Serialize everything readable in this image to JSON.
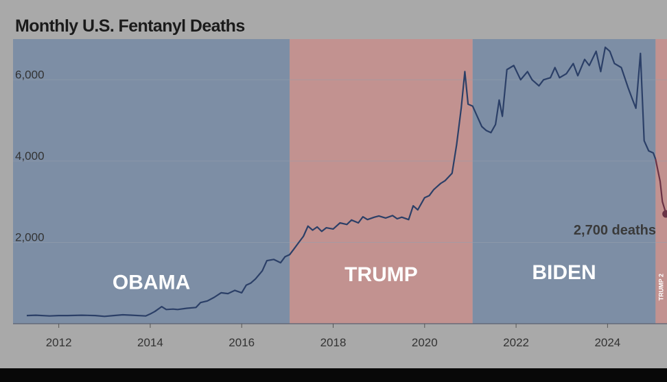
{
  "chart_data": {
    "type": "line",
    "title": "Monthly U.S. Fentanyl Deaths",
    "xlabel": "",
    "ylabel": "",
    "xlim": [
      2011.0,
      2025.3
    ],
    "ylim": [
      0,
      7000
    ],
    "grid": true,
    "x_ticks": [
      2012,
      2014,
      2016,
      2018,
      2020,
      2022,
      2024
    ],
    "y_ticks": [
      2000,
      4000,
      6000
    ],
    "y_tick_labels": [
      "2,000",
      "4,000",
      "6,000"
    ],
    "x_tick_labels": [
      "2012",
      "2014",
      "2016",
      "2018",
      "2020",
      "2022",
      "2024"
    ],
    "eras": [
      {
        "label": "OBAMA",
        "start": 2011.0,
        "end": 2017.05,
        "color": "#7d8ea5"
      },
      {
        "label": "TRUMP",
        "start": 2017.05,
        "end": 2021.05,
        "color": "#c29290"
      },
      {
        "label": "BIDEN",
        "start": 2021.05,
        "end": 2025.05,
        "color": "#7d8ea5"
      },
      {
        "label": "TRUMP 2",
        "start": 2025.05,
        "end": 2025.3,
        "color": "#c29290"
      }
    ],
    "series": [
      {
        "values": [
          [
            2011.3,
            200
          ],
          [
            2011.5,
            210
          ],
          [
            2011.8,
            190
          ],
          [
            2012.0,
            200
          ],
          [
            2012.2,
            200
          ],
          [
            2012.5,
            210
          ],
          [
            2012.8,
            200
          ],
          [
            2013.0,
            180
          ],
          [
            2013.2,
            200
          ],
          [
            2013.4,
            220
          ],
          [
            2013.6,
            210
          ],
          [
            2013.9,
            190
          ],
          [
            2014.0,
            240
          ],
          [
            2014.1,
            300
          ],
          [
            2014.25,
            420
          ],
          [
            2014.35,
            350
          ],
          [
            2014.5,
            360
          ],
          [
            2014.6,
            350
          ],
          [
            2014.8,
            380
          ],
          [
            2015.0,
            400
          ],
          [
            2015.1,
            520
          ],
          [
            2015.25,
            560
          ],
          [
            2015.4,
            650
          ],
          [
            2015.55,
            760
          ],
          [
            2015.7,
            740
          ],
          [
            2015.85,
            820
          ],
          [
            2016.0,
            760
          ],
          [
            2016.1,
            950
          ],
          [
            2016.2,
            1000
          ],
          [
            2016.3,
            1100
          ],
          [
            2016.45,
            1300
          ],
          [
            2016.55,
            1550
          ],
          [
            2016.7,
            1580
          ],
          [
            2016.85,
            1500
          ],
          [
            2016.95,
            1650
          ],
          [
            2017.05,
            1700
          ],
          [
            2017.15,
            1850
          ],
          [
            2017.25,
            2000
          ],
          [
            2017.35,
            2150
          ],
          [
            2017.45,
            2400
          ],
          [
            2017.55,
            2300
          ],
          [
            2017.65,
            2380
          ],
          [
            2017.75,
            2270
          ],
          [
            2017.85,
            2360
          ],
          [
            2018.0,
            2330
          ],
          [
            2018.15,
            2480
          ],
          [
            2018.3,
            2440
          ],
          [
            2018.4,
            2550
          ],
          [
            2018.55,
            2480
          ],
          [
            2018.65,
            2630
          ],
          [
            2018.75,
            2560
          ],
          [
            2018.9,
            2620
          ],
          [
            2019.0,
            2650
          ],
          [
            2019.15,
            2600
          ],
          [
            2019.3,
            2660
          ],
          [
            2019.4,
            2580
          ],
          [
            2019.5,
            2620
          ],
          [
            2019.65,
            2560
          ],
          [
            2019.75,
            2900
          ],
          [
            2019.85,
            2800
          ],
          [
            2020.0,
            3100
          ],
          [
            2020.1,
            3150
          ],
          [
            2020.2,
            3300
          ],
          [
            2020.35,
            3450
          ],
          [
            2020.45,
            3520
          ],
          [
            2020.6,
            3700
          ],
          [
            2020.7,
            4400
          ],
          [
            2020.8,
            5300
          ],
          [
            2020.88,
            6200
          ],
          [
            2020.95,
            5400
          ],
          [
            2021.05,
            5350
          ],
          [
            2021.15,
            5100
          ],
          [
            2021.25,
            4850
          ],
          [
            2021.35,
            4750
          ],
          [
            2021.45,
            4700
          ],
          [
            2021.55,
            4900
          ],
          [
            2021.63,
            5500
          ],
          [
            2021.7,
            5100
          ],
          [
            2021.8,
            6250
          ],
          [
            2021.95,
            6350
          ],
          [
            2022.1,
            6000
          ],
          [
            2022.25,
            6200
          ],
          [
            2022.35,
            6000
          ],
          [
            2022.5,
            5850
          ],
          [
            2022.6,
            6000
          ],
          [
            2022.75,
            6050
          ],
          [
            2022.85,
            6300
          ],
          [
            2022.95,
            6050
          ],
          [
            2023.1,
            6150
          ],
          [
            2023.25,
            6400
          ],
          [
            2023.35,
            6100
          ],
          [
            2023.5,
            6500
          ],
          [
            2023.6,
            6350
          ],
          [
            2023.75,
            6700
          ],
          [
            2023.85,
            6200
          ],
          [
            2023.95,
            6800
          ],
          [
            2024.05,
            6700
          ],
          [
            2024.15,
            6400
          ],
          [
            2024.3,
            6300
          ],
          [
            2024.45,
            5800
          ],
          [
            2024.55,
            5500
          ],
          [
            2024.62,
            5300
          ],
          [
            2024.72,
            6650
          ],
          [
            2024.8,
            4500
          ],
          [
            2024.9,
            4250
          ],
          [
            2025.0,
            4200
          ],
          [
            2025.05,
            4050
          ],
          [
            2025.15,
            3500
          ],
          [
            2025.2,
            3000
          ],
          [
            2025.28,
            2700
          ]
        ]
      }
    ],
    "line_color": "#2b3f67",
    "trump2_line_color": "#6a3346",
    "annotation": {
      "text": "2,700 deaths",
      "x": 2025.28,
      "y": 2700
    },
    "era_label_sizes": {
      "OBAMA": 30,
      "TRUMP": 30,
      "BIDEN": 30,
      "TRUMP 2": 9
    },
    "era_label_levels": {
      "OBAMA": 850,
      "TRUMP": 1050,
      "BIDEN": 1100,
      "TRUMP 2": 900
    }
  }
}
